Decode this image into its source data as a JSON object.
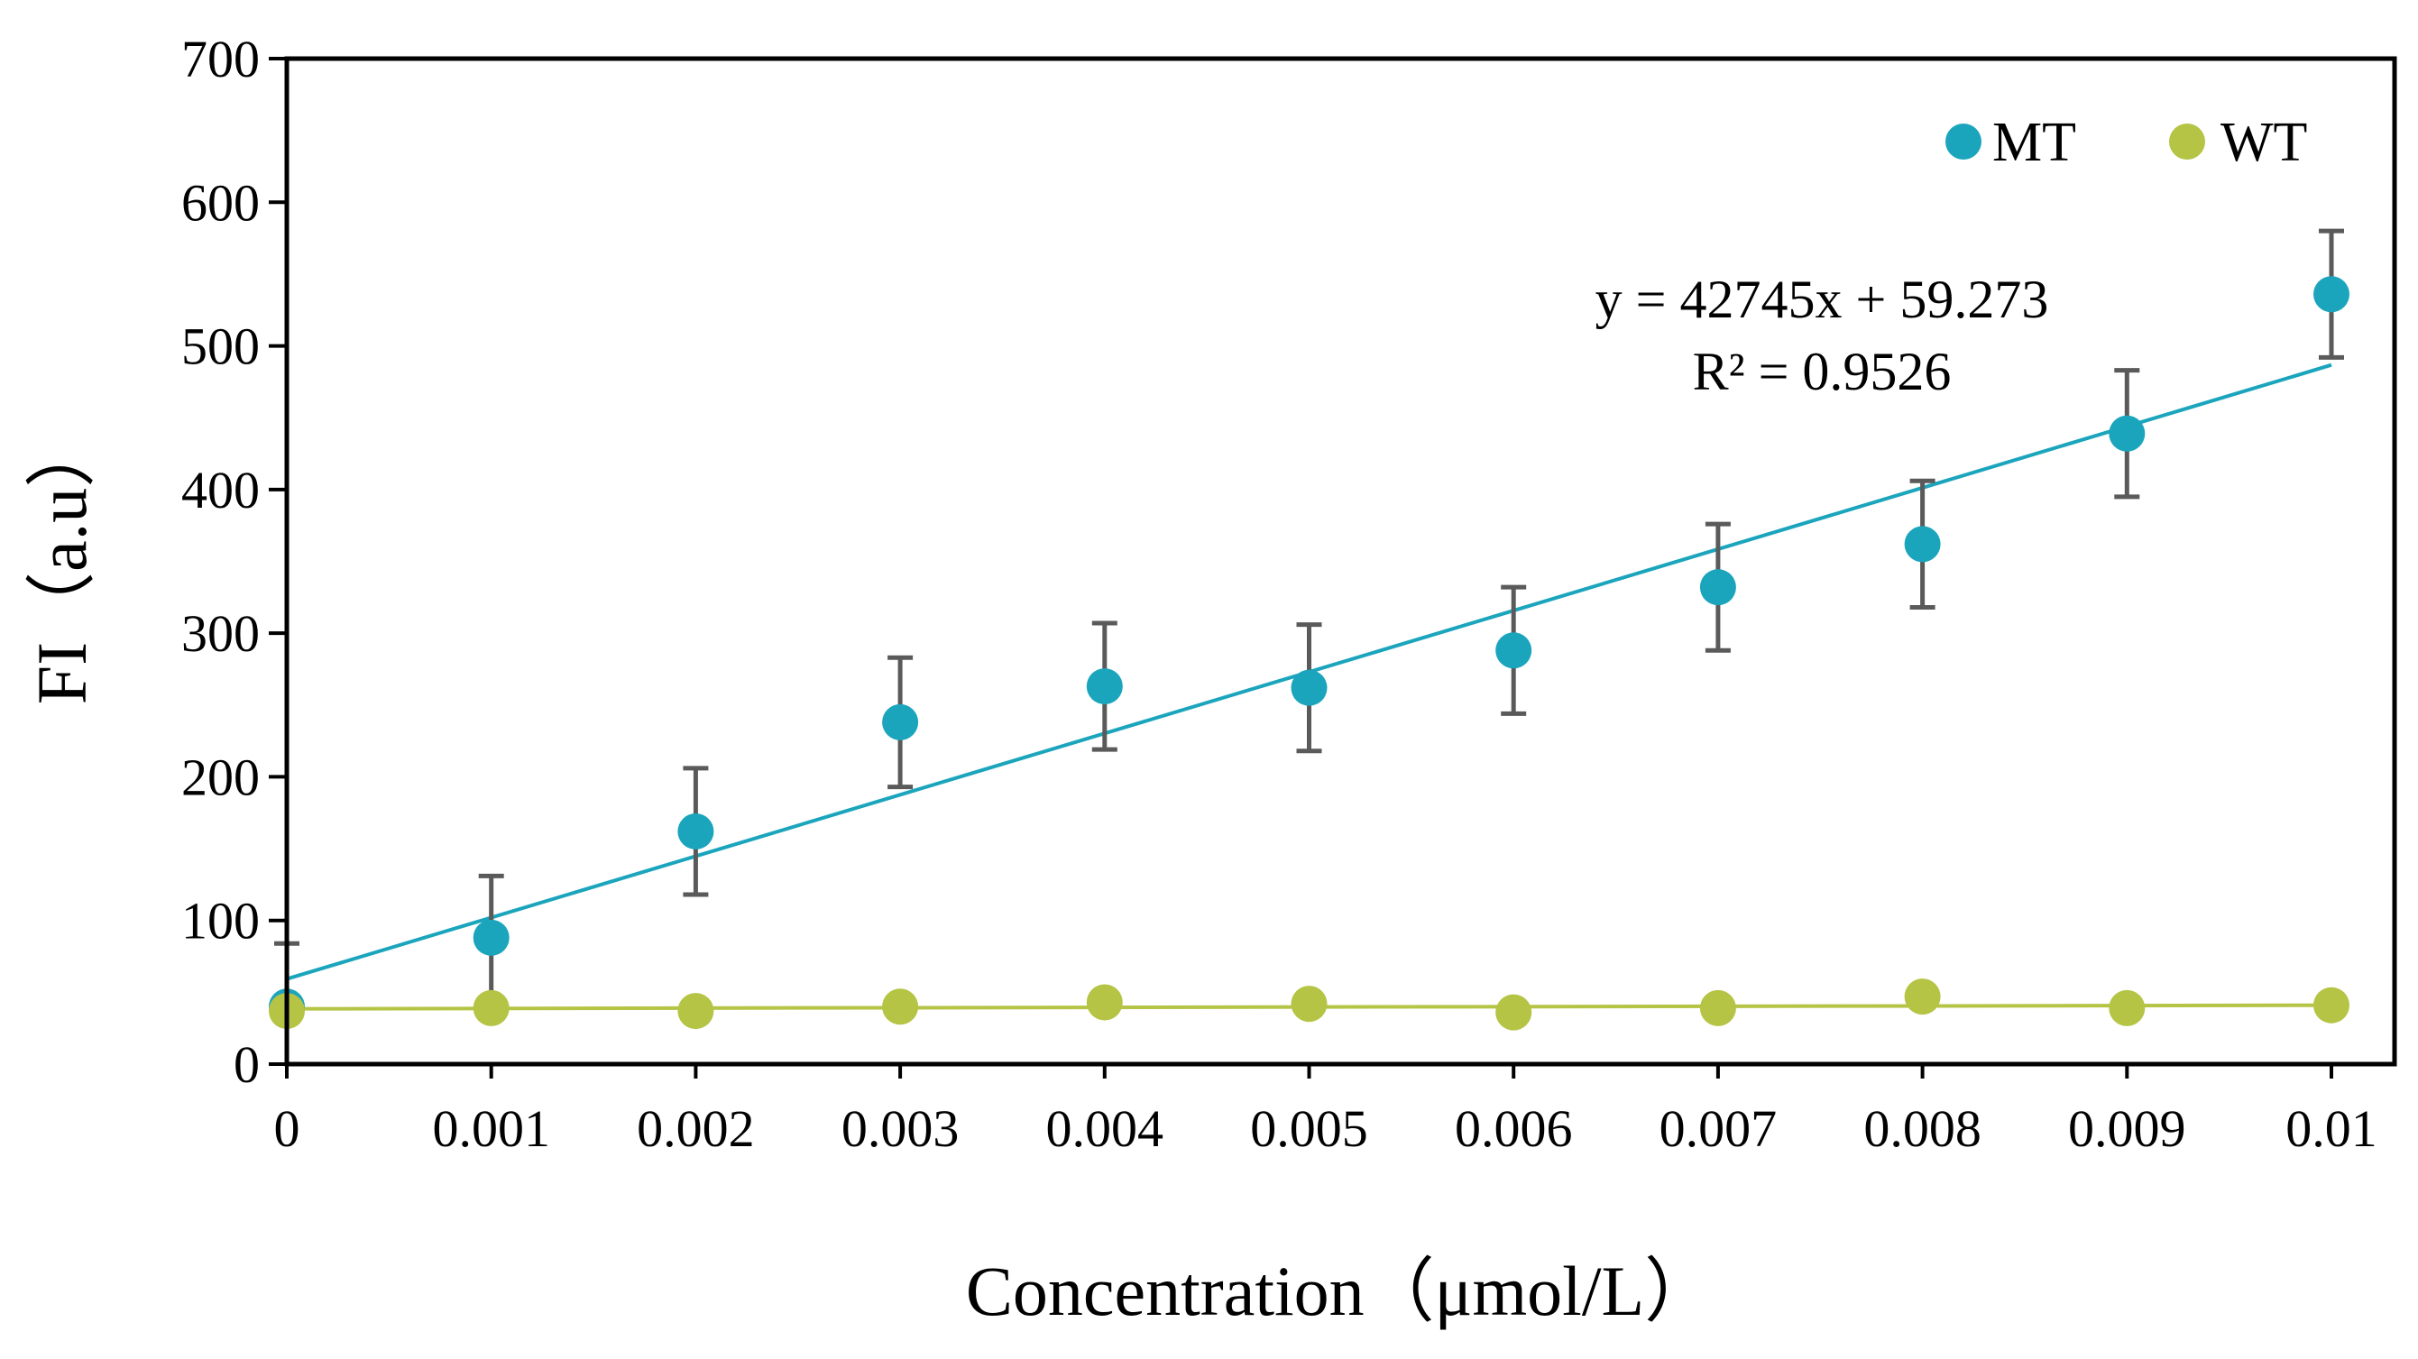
{
  "chart_data": {
    "type": "scatter",
    "title": "",
    "xlabel": "Concentration（μmol/L）",
    "ylabel": "FI（a.u）",
    "xlim": [
      0,
      0.01
    ],
    "ylim": [
      0,
      700
    ],
    "x_ticks": [
      0,
      0.001,
      0.002,
      0.003,
      0.004,
      0.005,
      0.006,
      0.007,
      0.008,
      0.009,
      0.01
    ],
    "x_tick_labels": [
      "0",
      "0.001",
      "0.002",
      "0.003",
      "0.004",
      "0.005",
      "0.006",
      "0.007",
      "0.008",
      "0.009",
      "0.01"
    ],
    "y_ticks": [
      0,
      100,
      200,
      300,
      400,
      500,
      600,
      700
    ],
    "y_tick_labels": [
      "0",
      "100",
      "200",
      "300",
      "400",
      "500",
      "600",
      "700"
    ],
    "grid": false,
    "legend_position": "top-right",
    "series": [
      {
        "name": "MT",
        "color": "#1ba5bd",
        "x": [
          0,
          0.001,
          0.002,
          0.003,
          0.004,
          0.005,
          0.006,
          0.007,
          0.008,
          0.009,
          0.01
        ],
        "values": [
          40,
          88,
          162,
          238,
          263,
          262,
          288,
          332,
          362,
          439,
          536
        ],
        "error": [
          44,
          43,
          44,
          45,
          44,
          44,
          44,
          44,
          44,
          44,
          44
        ],
        "trendline": {
          "type": "linear",
          "slope": 42745,
          "intercept": 59.273,
          "equation": "y = 42745x + 59.273",
          "r2_label": "R² = 0.9526"
        }
      },
      {
        "name": "WT",
        "color": "#b5c444",
        "x": [
          0,
          0.001,
          0.002,
          0.003,
          0.004,
          0.005,
          0.006,
          0.007,
          0.008,
          0.009,
          0.01
        ],
        "values": [
          37,
          39,
          37,
          40,
          43,
          42,
          36,
          39,
          47,
          39,
          41
        ],
        "trendline": {
          "type": "linear",
          "slope": 250,
          "intercept": 38.5
        }
      }
    ]
  }
}
